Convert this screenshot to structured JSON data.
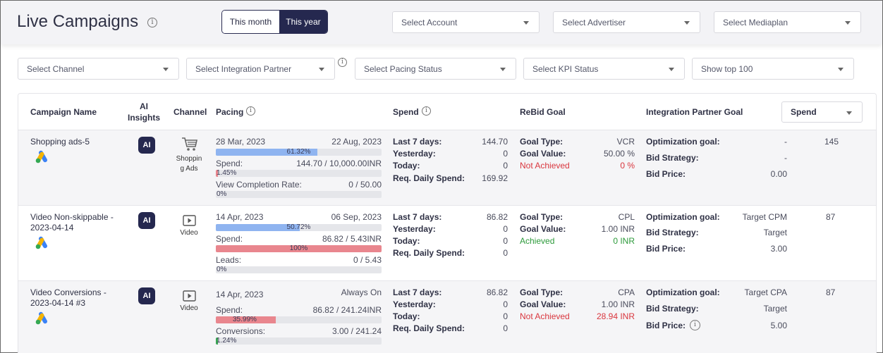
{
  "page": {
    "title": "Live Campaigns"
  },
  "period": {
    "this_month": "This month",
    "this_year": "This year"
  },
  "filters": {
    "account": "Select Account",
    "advertiser": "Select Advertiser",
    "mediaplan": "Select Mediaplan",
    "channel": "Select Channel",
    "integration_partner": "Select Integration Partner",
    "pacing_status": "Select Pacing Status",
    "kpi_status": "Select KPI Status",
    "show_top": "Show top 100"
  },
  "table": {
    "headers": {
      "campaign_name": "Campaign Name",
      "ai_insights_1": "AI",
      "ai_insights_2": "Insights",
      "channel": "Channel",
      "pacing": "Pacing",
      "spend": "Spend",
      "rebid_goal": "ReBid Goal",
      "integration_partner_goal": "Integration Partner Goal",
      "sort_select": "Spend"
    },
    "labels": {
      "last7": "Last 7 days:",
      "yesterday": "Yesterday:",
      "today": "Today:",
      "req_daily": "Req. Daily Spend:",
      "goal_type": "Goal Type:",
      "goal_value": "Goal Value:",
      "opt_goal": "Optimization goal:",
      "bid_strategy": "Bid Strategy:",
      "bid_price": "Bid Price:",
      "ai": "AI"
    },
    "rows": [
      {
        "name": "Shopping ads-5",
        "channel_line1": "Shoppin",
        "channel_line2": "g Ads",
        "start": "28 Mar, 2023",
        "end": "22 Aug, 2023",
        "pacing_pct": 61.32,
        "pacing_label": "61.32%",
        "spend_label": "Spend:",
        "spend_value": "144.70 / 10,000.00INR",
        "spend_pct": 1.45,
        "spend_pct_label": "1.45%",
        "metric_label": "View Completion Rate:",
        "metric_value": "0 / 50.00",
        "metric_pct": 0,
        "metric_pct_label": "0%",
        "last7": "144.70",
        "yesterday": "0",
        "today": "0",
        "req_daily": "169.92",
        "goal_type": "VCR",
        "goal_value": "50.00 %",
        "status": "Not Achieved",
        "status_value": "0 %",
        "opt_goal": "-",
        "bid_strategy": "-",
        "bid_price": "0.00",
        "total": "145"
      },
      {
        "name_line1": "Video Non-skippable -",
        "name_line2": "2023-04-14",
        "channel": "Video",
        "start": "14 Apr, 2023",
        "end": "06 Sep, 2023",
        "pacing_pct": 50.72,
        "pacing_label": "50.72%",
        "spend_label": "Spend:",
        "spend_value": "86.82 / 5.43INR",
        "spend_pct": 100,
        "spend_pct_label": "100%",
        "metric_label": "Leads:",
        "metric_value": "0 / 5.43",
        "metric_pct": 0,
        "metric_pct_label": "0%",
        "last7": "86.82",
        "yesterday": "0",
        "today": "0",
        "req_daily": "0",
        "goal_type": "CPL",
        "goal_value": "1.00 INR",
        "status": "Achieved",
        "status_value": "0 INR",
        "opt_goal": "Target CPM",
        "bid_strategy": "Target",
        "bid_price": "3.00",
        "total": "87"
      },
      {
        "name_line1": "Video Conversions -",
        "name_line2": "2023-04-14 #3",
        "channel": "Video",
        "start": "14 Apr, 2023",
        "end": "Always On",
        "spend_label": "Spend:",
        "spend_value": "86.82 / 241.24INR",
        "spend_pct": 35.99,
        "spend_pct_label": "35.99%",
        "metric_label": "Conversions:",
        "metric_value": "3.00 / 241.24",
        "metric_pct": 1.24,
        "metric_pct_label": "1.24%",
        "last7": "86.82",
        "yesterday": "0",
        "today": "0",
        "req_daily": "0",
        "goal_type": "CPA",
        "goal_value": "1.00 INR",
        "status": "Not Achieved",
        "status_value": "28.94 INR",
        "opt_goal": "Target CPA",
        "bid_strategy": "Target",
        "bid_price": "5.00",
        "total": "87"
      }
    ]
  },
  "colors": {
    "navy": "#25284f",
    "pacing_bar": "#8fb4f0",
    "spend_bar_red": "#e9868e",
    "metric_bar_green": "#3aa655",
    "not_achieved": "#d9363e",
    "achieved": "#2c9a3a"
  },
  "icons": [
    "info-icon",
    "caret-down-icon",
    "google-ads-icon",
    "shopping-cart-icon",
    "video-play-icon"
  ]
}
